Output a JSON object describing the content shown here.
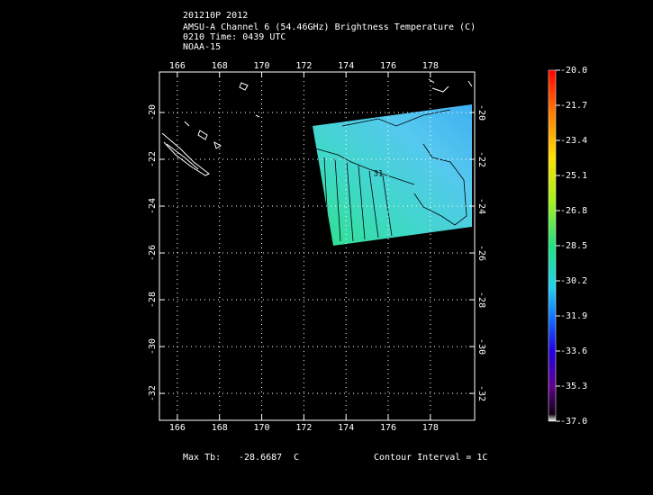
{
  "header": {
    "lines": [
      "201210P 2012",
      "AMSU-A Channel 6 (54.46GHz) Brightness Temperature (C)",
      "0210 Time: 0439 UTC",
      "NOAA-15"
    ]
  },
  "map": {
    "xlim": [
      165.15,
      180.1
    ],
    "ylim": [
      -33.15,
      -18.27
    ],
    "xticks": [
      166,
      168,
      170,
      172,
      174,
      176,
      178
    ],
    "yticks": [
      -20,
      -22,
      -24,
      -26,
      -28,
      -30,
      -32
    ],
    "grid": true,
    "contour_label": "31"
  },
  "colorbar": {
    "lim": [
      -37,
      -20
    ],
    "ticks": [
      {
        "value": -20,
        "label": "-20.0"
      },
      {
        "value": -21.7,
        "label": "-21.7"
      },
      {
        "value": -23.4,
        "label": "-23.4"
      },
      {
        "value": -25.1,
        "label": "-25.1"
      },
      {
        "value": -26.8,
        "label": "-26.8"
      },
      {
        "value": -28.5,
        "label": "-28.5"
      },
      {
        "value": -30.2,
        "label": "-30.2"
      },
      {
        "value": -31.9,
        "label": "-31.9"
      },
      {
        "value": -33.6,
        "label": "-33.6"
      },
      {
        "value": -35.3,
        "label": "-35.3"
      },
      {
        "value": -37,
        "label": "-37.0"
      }
    ]
  },
  "footer": {
    "max_label": "Max Tb:",
    "max_value": -28.6687,
    "max_unit": "C",
    "contour_interval": "Contour Interval = 1C"
  }
}
